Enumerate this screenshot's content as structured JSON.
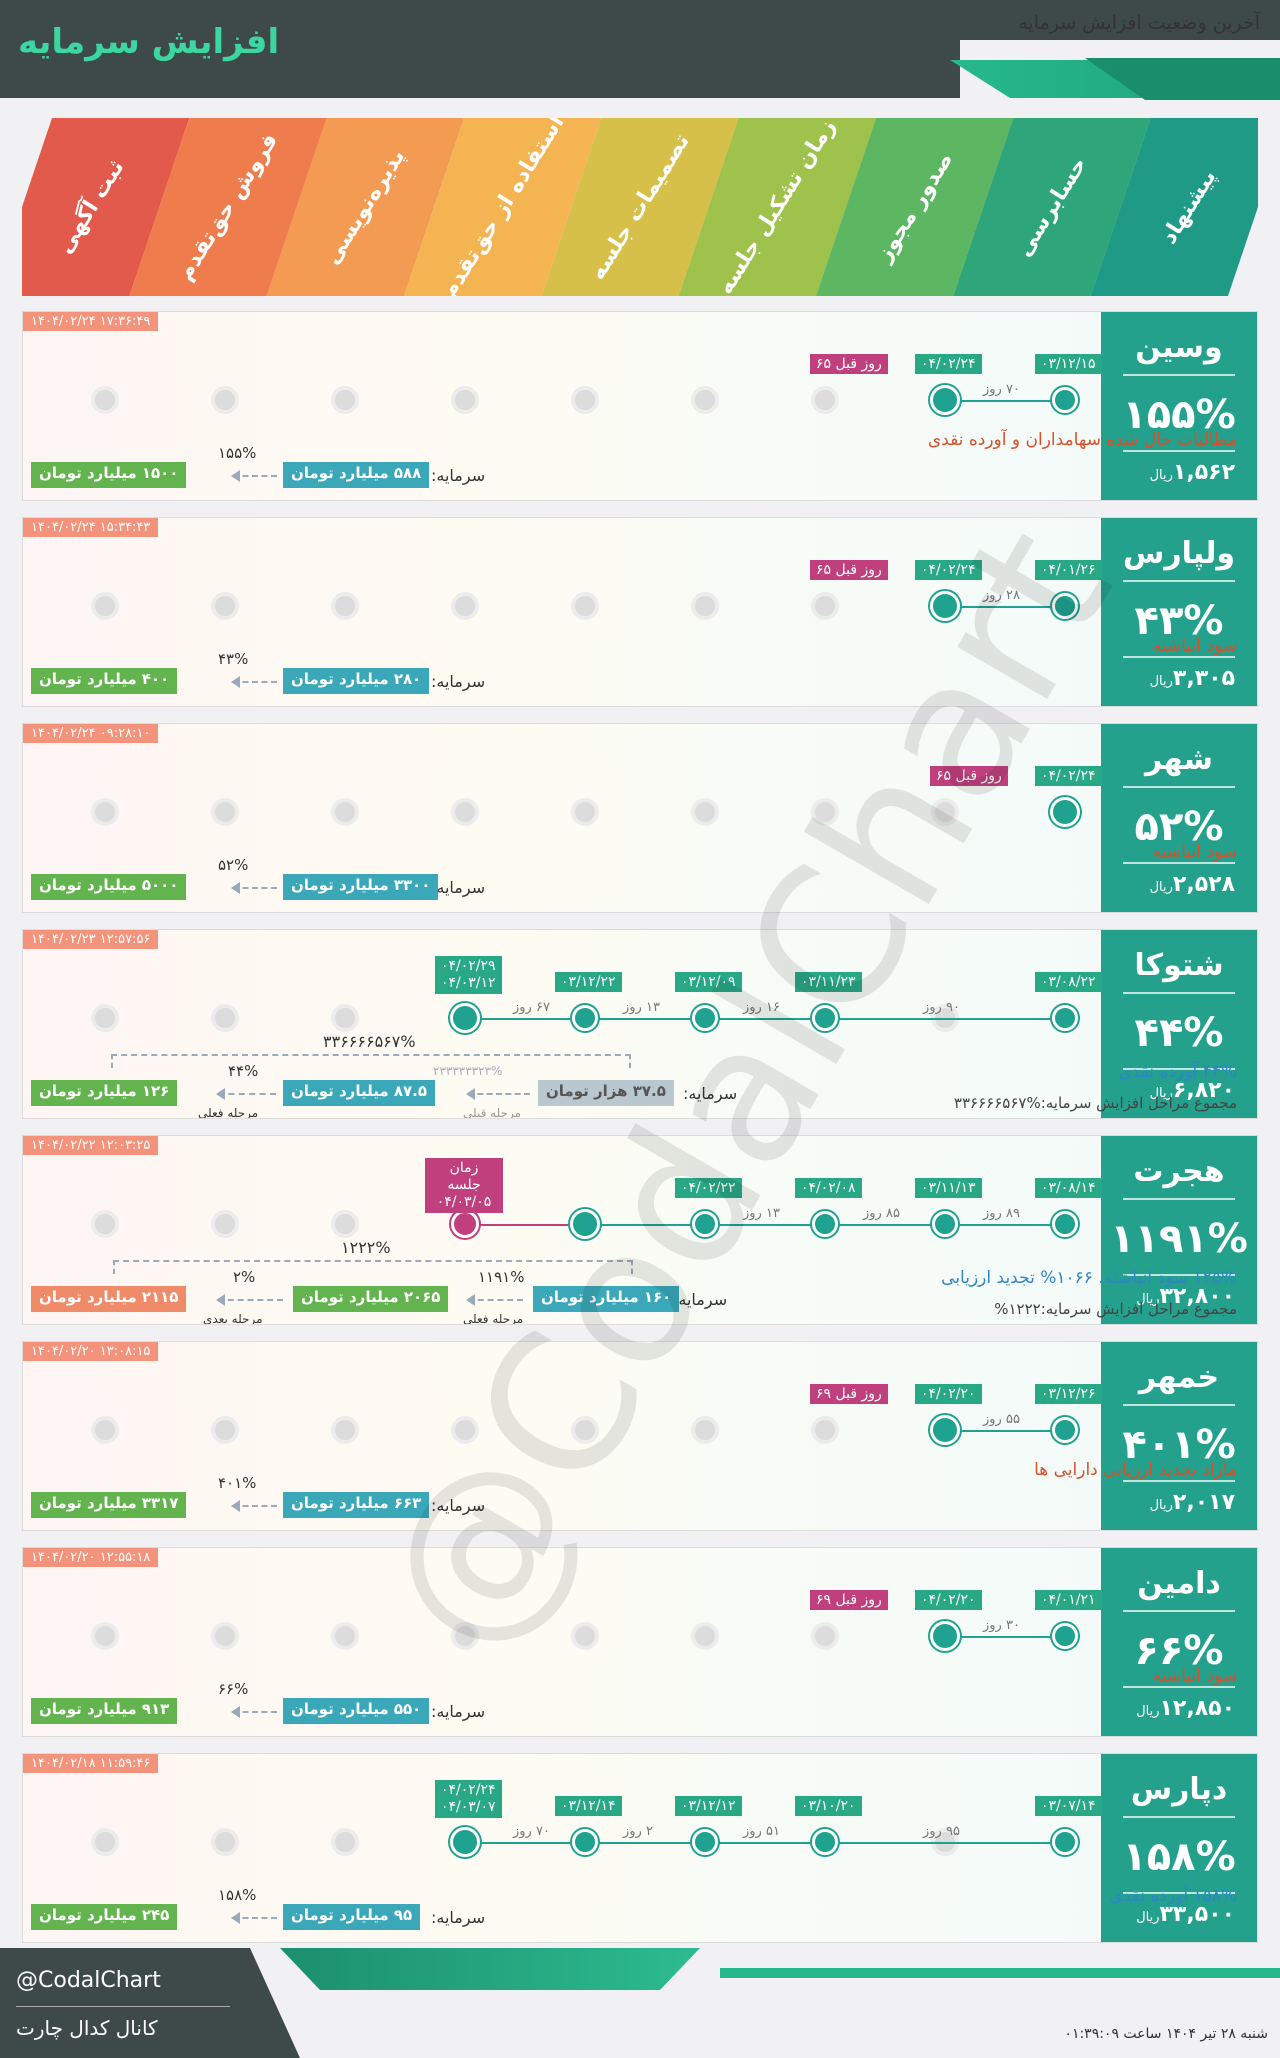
{
  "header": {
    "brand": "افزایش سرمایه",
    "subtitle": "آخرین وضعیت افزایش سرمایه"
  },
  "stages": [
    {
      "label": "ثبت آگهی",
      "color": "#e25a4b"
    },
    {
      "label": "فروش حق‌تقدم",
      "color": "#ee7c4c"
    },
    {
      "label": "پذیره‌نویسی",
      "color": "#f39b52"
    },
    {
      "label": "استفاده از حق‌تقدم",
      "color": "#f5b452"
    },
    {
      "label": "تصمیمات جلسه",
      "color": "#d7c04a"
    },
    {
      "label": "زمان تشکیل جلسه",
      "color": "#9fc24d"
    },
    {
      "label": "صدور مجوز",
      "color": "#5db661"
    },
    {
      "label": "حسابرسی",
      "color": "#2fa57a"
    },
    {
      "label": "پیشنهاد",
      "color": "#1e9a86"
    }
  ],
  "rows": [
    {
      "name": "وسین",
      "pct": "۱۵۵%",
      "price": "۱,۵۶۲",
      "unit": "ریال",
      "stamp": "۱۴۰۴/۰۲/۲۴ ۱۷:۳۶:۴۹",
      "d1": "۰۳/۱۲/۱۵",
      "d2": "۰۴/۰۲/۲۴",
      "ago": "۶۵ روز قبل",
      "days": "۷۰ روز",
      "desc": "مطالبات حال شده سهامداران و آورده نقدی",
      "cap_label": "سرمایه:",
      "cap_from": "۵۸۸ میلیارد تومان",
      "cap_to": "۱۵۰۰ میلیارد تومان",
      "cap_pct": "۱۵۵%"
    },
    {
      "name": "ولپارس",
      "pct": "۴۳%",
      "price": "۳,۳۰۵",
      "unit": "ریال",
      "stamp": "۱۴۰۴/۰۲/۲۴ ۱۵:۳۴:۴۳",
      "d1": "۰۴/۰۱/۲۶",
      "d2": "۰۴/۰۲/۲۴",
      "ago": "۶۵ روز قبل",
      "days": "۲۸ روز",
      "desc": "سود انباشته",
      "cap_label": "سرمایه:",
      "cap_from": "۲۸۰ میلیارد تومان",
      "cap_to": "۴۰۰ میلیارد تومان",
      "cap_pct": "۴۳%"
    },
    {
      "name": "شهر",
      "pct": "۵۲%",
      "price": "۲,۵۲۸",
      "unit": "ریال",
      "stamp": "۱۴۰۴/۰۲/۲۴ ۰۹:۲۸:۱۰",
      "d1": "۰۴/۰۲/۲۴",
      "ago": "۶۵ روز قبل",
      "desc": "سود انباشته",
      "cap_label": "سرمایه:",
      "cap_from": "۳۳۰۰ میلیارد تومان",
      "cap_to": "۵۰۰۰ میلیارد تومان",
      "cap_pct": "۵۲%"
    },
    {
      "name": "شتوکا",
      "pct": "۴۴%",
      "price": "۶,۸۲۰",
      "unit": "ریال",
      "stamp": "۱۴۰۴/۰۲/۲۳ ۱۲:۵۷:۵۶",
      "d1": "۰۳/۰۸/۲۲",
      "d2": "۰۳/۱۱/۲۳",
      "d3": "۰۳/۱۲/۰۹",
      "d4": "۰۳/۱۲/۲۲",
      "d5a": "۰۴/۰۲/۲۹",
      "d5b": "۰۴/۰۳/۱۲",
      "days1": "۹۰ روز",
      "days2": "۱۶ روز",
      "days3": "۱۳ روز",
      "days4": "۶۷ روز",
      "desc": "۴۴% آورده نقدی",
      "desc2": "مجموع مراحل افزایش سرمایه:%۳۳۶۶۶۶۵۶۷",
      "cap_label": "سرمایه:",
      "cap_prev": "۳۷.۵ هزار تومان",
      "cap_from": "۸۷.۵ میلیارد تومان",
      "cap_to": "۱۲۶ میلیارد تومان",
      "cap_pct": "۴۴%",
      "big_pct": "۳۳۶۶۶۶۵۶۷%",
      "prev_pct": "۲۳۳۳۳۳۳۲۳%",
      "lbl_prev": "مرحله قبلی",
      "lbl_cur": "مرحله فعلی"
    },
    {
      "name": "هجرت",
      "pct": "۱۱۹۱%",
      "price": "۳۲,۸۰۰",
      "unit": "ریال",
      "stamp": "۱۴۰۴/۰۲/۲۲ ۱۲:۰۳:۲۵",
      "d1": "۰۳/۰۸/۱۴",
      "d2": "۰۳/۱۱/۱۳",
      "d3": "۰۴/۰۲/۰۸",
      "d4": "۰۴/۰۲/۲۲",
      "d5": "زمان جلسه ۰۴/۰۳/۰۵",
      "days1": "۸۹ روز",
      "days2": "۸۵ روز",
      "days3": "۱۳ روز",
      "desc": "۱۲۵% سود انباشته، ۱۰۶۶% تجدید ارزیابی",
      "desc2": "مجموع مراحل افزایش سرمایه:۱۲۲۲%",
      "cap_label": "سرمایه:",
      "cap_from": "۱۶۰ میلیارد تومان",
      "cap_mid": "۲۰۶۵ میلیارد تومان",
      "cap_to": "۲۱۱۵ میلیارد تومان",
      "cap_pct": "۱۱۹۱%",
      "next_pct": "۲%",
      "big_pct": "۱۲۲۲%",
      "lbl_cur": "مرحله فعلی",
      "lbl_next": "مرحله بعدی"
    },
    {
      "name": "خمهر",
      "pct": "۴۰۱%",
      "price": "۲,۰۱۷",
      "unit": "ریال",
      "stamp": "۱۴۰۴/۰۲/۲۰ ۱۳:۰۸:۱۵",
      "d1": "۰۳/۱۲/۲۶",
      "d2": "۰۴/۰۲/۲۰",
      "ago": "۶۹ روز قبل",
      "days": "۵۵ روز",
      "desc": "مازاد تجدید ارزیابی دارایی ها",
      "cap_label": "سرمایه:",
      "cap_from": "۶۶۳ میلیارد تومان",
      "cap_to": "۳۳۱۷ میلیارد تومان",
      "cap_pct": "۴۰۱%"
    },
    {
      "name": "دامین",
      "pct": "۶۶%",
      "price": "۱۲,۸۵۰",
      "unit": "ریال",
      "stamp": "۱۴۰۴/۰۲/۲۰ ۱۲:۵۵:۱۸",
      "d1": "۰۴/۰۱/۲۱",
      "d2": "۰۴/۰۲/۲۰",
      "ago": "۶۹ روز قبل",
      "days": "۳۰ روز",
      "desc": "سود انباشته",
      "cap_label": "سرمایه:",
      "cap_from": "۵۵۰ میلیارد تومان",
      "cap_to": "۹۱۳ میلیارد تومان",
      "cap_pct": "۶۶%"
    },
    {
      "name": "دپارس",
      "pct": "۱۵۸%",
      "price": "۳۳,۵۰۰",
      "unit": "ریال",
      "stamp": "۱۴۰۴/۰۲/۱۸ ۱۱:۵۹:۴۶",
      "d1": "۰۳/۰۷/۱۴",
      "d2": "۰۳/۱۰/۲۰",
      "d3": "۰۳/۱۲/۱۲",
      "d4": "۰۳/۱۲/۱۴",
      "d5a": "۰۴/۰۲/۲۴",
      "d5b": "۰۴/۰۳/۰۷",
      "days1": "۹۵ روز",
      "days2": "۵۱ روز",
      "days3": "۲ روز",
      "days4": "۷۰ روز",
      "desc": "۱۵۸% آورده نقدی",
      "cap_label": "سرمایه:",
      "cap_from": "۹۵ میلیارد تومان",
      "cap_to": "۲۴۵ میلیارد تومان",
      "cap_pct": "۱۵۸%"
    }
  ],
  "watermark": "@CodalChart",
  "footer": {
    "handle": "@CodalChart",
    "channel": "کانال کدال چارت",
    "date": "شنبه ۲۸ تیر ۱۴۰۴ ساعت ۰۱:۳۹:۰۹"
  }
}
